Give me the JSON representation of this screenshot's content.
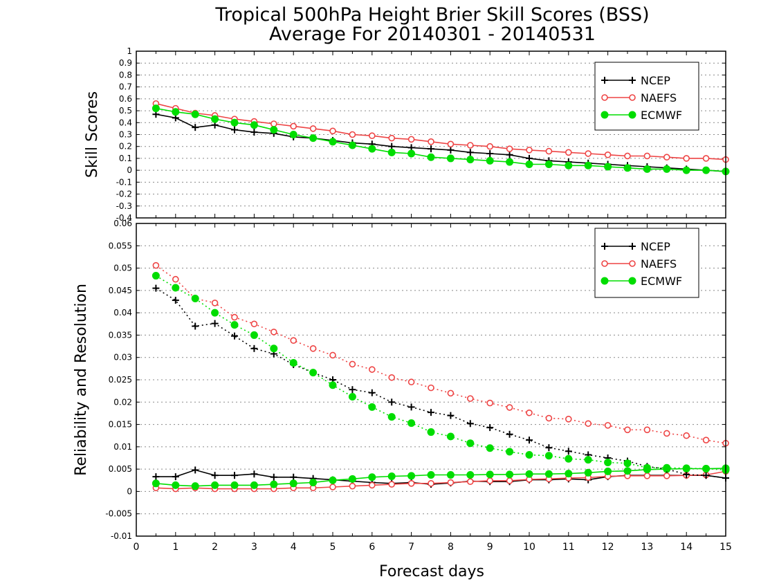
{
  "title_line1": "Tropical 500hPa Height Brier Skill Scores (BSS)",
  "title_line2": "Average For 20140301 - 20140531",
  "xlabel": "Forecast days",
  "chart_data": [
    {
      "type": "line",
      "ylabel": "Skill Scores",
      "xlim": [
        0,
        15
      ],
      "ylim": [
        -0.4,
        1
      ],
      "yticks": [
        -0.4,
        -0.3,
        -0.2,
        -0.1,
        0,
        0.1,
        0.2,
        0.3,
        0.4,
        0.5,
        0.6,
        0.7,
        0.8,
        0.9,
        1
      ],
      "ytick_labels": [
        "-0.4",
        "-0.3",
        "-0.2",
        "-0.1",
        "0",
        "0.1",
        "0.2",
        "0.3",
        "0.4",
        "0.5",
        "0.6",
        "0.7",
        "0.8",
        "0.9",
        "1"
      ],
      "grid": "horizontal dotted",
      "legend": "top-right",
      "x": [
        0.5,
        1,
        1.5,
        2,
        2.5,
        3,
        3.5,
        4,
        4.5,
        5,
        5.5,
        6,
        6.5,
        7,
        7.5,
        8,
        8.5,
        9,
        9.5,
        10,
        10.5,
        11,
        11.5,
        12,
        12.5,
        13,
        13.5,
        14,
        14.5,
        15
      ],
      "series": [
        {
          "name": "NCEP",
          "color": "#000000",
          "marker": "plus",
          "line": "solid",
          "values": [
            0.47,
            0.44,
            0.36,
            0.38,
            0.34,
            0.32,
            0.31,
            0.28,
            0.27,
            0.25,
            0.23,
            0.22,
            0.2,
            0.19,
            0.18,
            0.17,
            0.15,
            0.14,
            0.13,
            0.1,
            0.08,
            0.07,
            0.06,
            0.05,
            0.04,
            0.03,
            0.02,
            0.01,
            0.0,
            -0.01
          ]
        },
        {
          "name": "NAEFS",
          "color": "#ee4444",
          "marker": "open-circle",
          "line": "solid",
          "values": [
            0.56,
            0.52,
            0.48,
            0.46,
            0.43,
            0.41,
            0.39,
            0.37,
            0.35,
            0.33,
            0.3,
            0.29,
            0.27,
            0.26,
            0.24,
            0.22,
            0.21,
            0.2,
            0.18,
            0.17,
            0.16,
            0.15,
            0.14,
            0.13,
            0.12,
            0.12,
            0.11,
            0.1,
            0.1,
            0.09
          ]
        },
        {
          "name": "ECMWF",
          "color": "#00dd00",
          "marker": "filled-circle",
          "line": "solid",
          "values": [
            0.52,
            0.49,
            0.47,
            0.43,
            0.4,
            0.38,
            0.34,
            0.3,
            0.27,
            0.24,
            0.21,
            0.18,
            0.15,
            0.14,
            0.11,
            0.1,
            0.09,
            0.08,
            0.07,
            0.05,
            0.05,
            0.04,
            0.04,
            0.03,
            0.02,
            0.01,
            0.01,
            0.0,
            0.0,
            -0.01
          ]
        }
      ]
    },
    {
      "type": "line",
      "ylabel": "Reliability and Resolution",
      "xlim": [
        0,
        15
      ],
      "ylim": [
        -0.01,
        0.06
      ],
      "yticks": [
        -0.01,
        -0.005,
        0,
        0.005,
        0.01,
        0.015,
        0.02,
        0.025,
        0.03,
        0.035,
        0.04,
        0.045,
        0.05,
        0.055,
        0.06
      ],
      "ytick_labels": [
        "-0.01",
        "-0.005",
        "0",
        "0.005",
        "0.01",
        "0.015",
        "0.02",
        "0.025",
        "0.03",
        "0.035",
        "0.04",
        "0.045",
        "0.05",
        "0.055",
        "0.06"
      ],
      "xticks": [
        0,
        1,
        2,
        3,
        4,
        5,
        6,
        7,
        8,
        9,
        10,
        11,
        12,
        13,
        14,
        15
      ],
      "xtick_labels": [
        "0",
        "1",
        "2",
        "3",
        "4",
        "5",
        "6",
        "7",
        "8",
        "9",
        "10",
        "11",
        "12",
        "13",
        "14",
        "15"
      ],
      "grid": "horizontal dotted",
      "legend": "top-right",
      "x": [
        0.5,
        1,
        1.5,
        2,
        2.5,
        3,
        3.5,
        4,
        4.5,
        5,
        5.5,
        6,
        6.5,
        7,
        7.5,
        8,
        8.5,
        9,
        9.5,
        10,
        10.5,
        11,
        11.5,
        12,
        12.5,
        13,
        13.5,
        14,
        14.5,
        15
      ],
      "series": [
        {
          "name": "NCEP",
          "color": "#000000",
          "marker": "plus",
          "line": "solid",
          "values": [
            0.0033,
            0.0033,
            0.0048,
            0.0036,
            0.0036,
            0.0039,
            0.0032,
            0.0032,
            0.0029,
            0.0026,
            0.0023,
            0.002,
            0.0018,
            0.002,
            0.0016,
            0.0019,
            0.0023,
            0.0022,
            0.0022,
            0.0026,
            0.0026,
            0.0028,
            0.0026,
            0.0033,
            0.0036,
            0.0036,
            0.0036,
            0.0036,
            0.0036,
            0.003
          ]
        },
        {
          "name": "NAEFS",
          "color": "#ee4444",
          "marker": "open-circle",
          "line": "solid",
          "values": [
            0.0008,
            0.0006,
            0.0008,
            0.0006,
            0.0006,
            0.0006,
            0.0006,
            0.0008,
            0.0008,
            0.001,
            0.0012,
            0.0014,
            0.0016,
            0.0018,
            0.0018,
            0.002,
            0.0022,
            0.0024,
            0.0024,
            0.0027,
            0.0028,
            0.003,
            0.0031,
            0.0034,
            0.0035,
            0.0035,
            0.0035,
            0.0036,
            0.0037,
            0.0045
          ]
        },
        {
          "name": "ECMWF",
          "color": "#00dd00",
          "marker": "filled-circle",
          "line": "solid",
          "values": [
            0.0018,
            0.0014,
            0.0012,
            0.0014,
            0.0014,
            0.0014,
            0.0016,
            0.0018,
            0.002,
            0.0025,
            0.0028,
            0.0032,
            0.0034,
            0.0035,
            0.0037,
            0.0037,
            0.0037,
            0.0038,
            0.0038,
            0.0039,
            0.0039,
            0.004,
            0.0042,
            0.0045,
            0.0046,
            0.0049,
            0.005,
            0.0051,
            0.0051,
            0.0052
          ]
        },
        {
          "name": "NCEP resolution",
          "color": "#000000",
          "marker": "plus",
          "line": "dotted",
          "values": [
            0.0455,
            0.0428,
            0.037,
            0.0376,
            0.0348,
            0.032,
            0.0308,
            0.0284,
            0.0266,
            0.025,
            0.0228,
            0.0221,
            0.02,
            0.0189,
            0.0177,
            0.017,
            0.0152,
            0.0143,
            0.0128,
            0.0115,
            0.0098,
            0.009,
            0.0082,
            0.0075,
            0.0068,
            0.0056,
            0.005,
            0.0038,
            0.0036,
            0.003
          ]
        },
        {
          "name": "NAEFS resolution",
          "color": "#ee4444",
          "marker": "open-circle",
          "line": "dotted",
          "values": [
            0.0506,
            0.0475,
            0.0432,
            0.0422,
            0.039,
            0.0375,
            0.0357,
            0.0338,
            0.032,
            0.0305,
            0.0285,
            0.0273,
            0.0255,
            0.0245,
            0.0232,
            0.022,
            0.0208,
            0.0198,
            0.0188,
            0.0176,
            0.0164,
            0.0162,
            0.0152,
            0.0148,
            0.0138,
            0.0138,
            0.013,
            0.0125,
            0.0115,
            0.0108
          ]
        },
        {
          "name": "ECMWF resolution",
          "color": "#00dd00",
          "marker": "filled-circle",
          "line": "dotted",
          "values": [
            0.0483,
            0.0456,
            0.0432,
            0.04,
            0.0373,
            0.035,
            0.032,
            0.0288,
            0.0266,
            0.0238,
            0.0212,
            0.0189,
            0.0167,
            0.0153,
            0.0133,
            0.0123,
            0.0108,
            0.0097,
            0.0089,
            0.0082,
            0.008,
            0.0073,
            0.0071,
            0.0065,
            0.0063,
            0.0053,
            0.0053,
            0.0052,
            0.0051,
            0.0048
          ]
        }
      ]
    }
  ]
}
